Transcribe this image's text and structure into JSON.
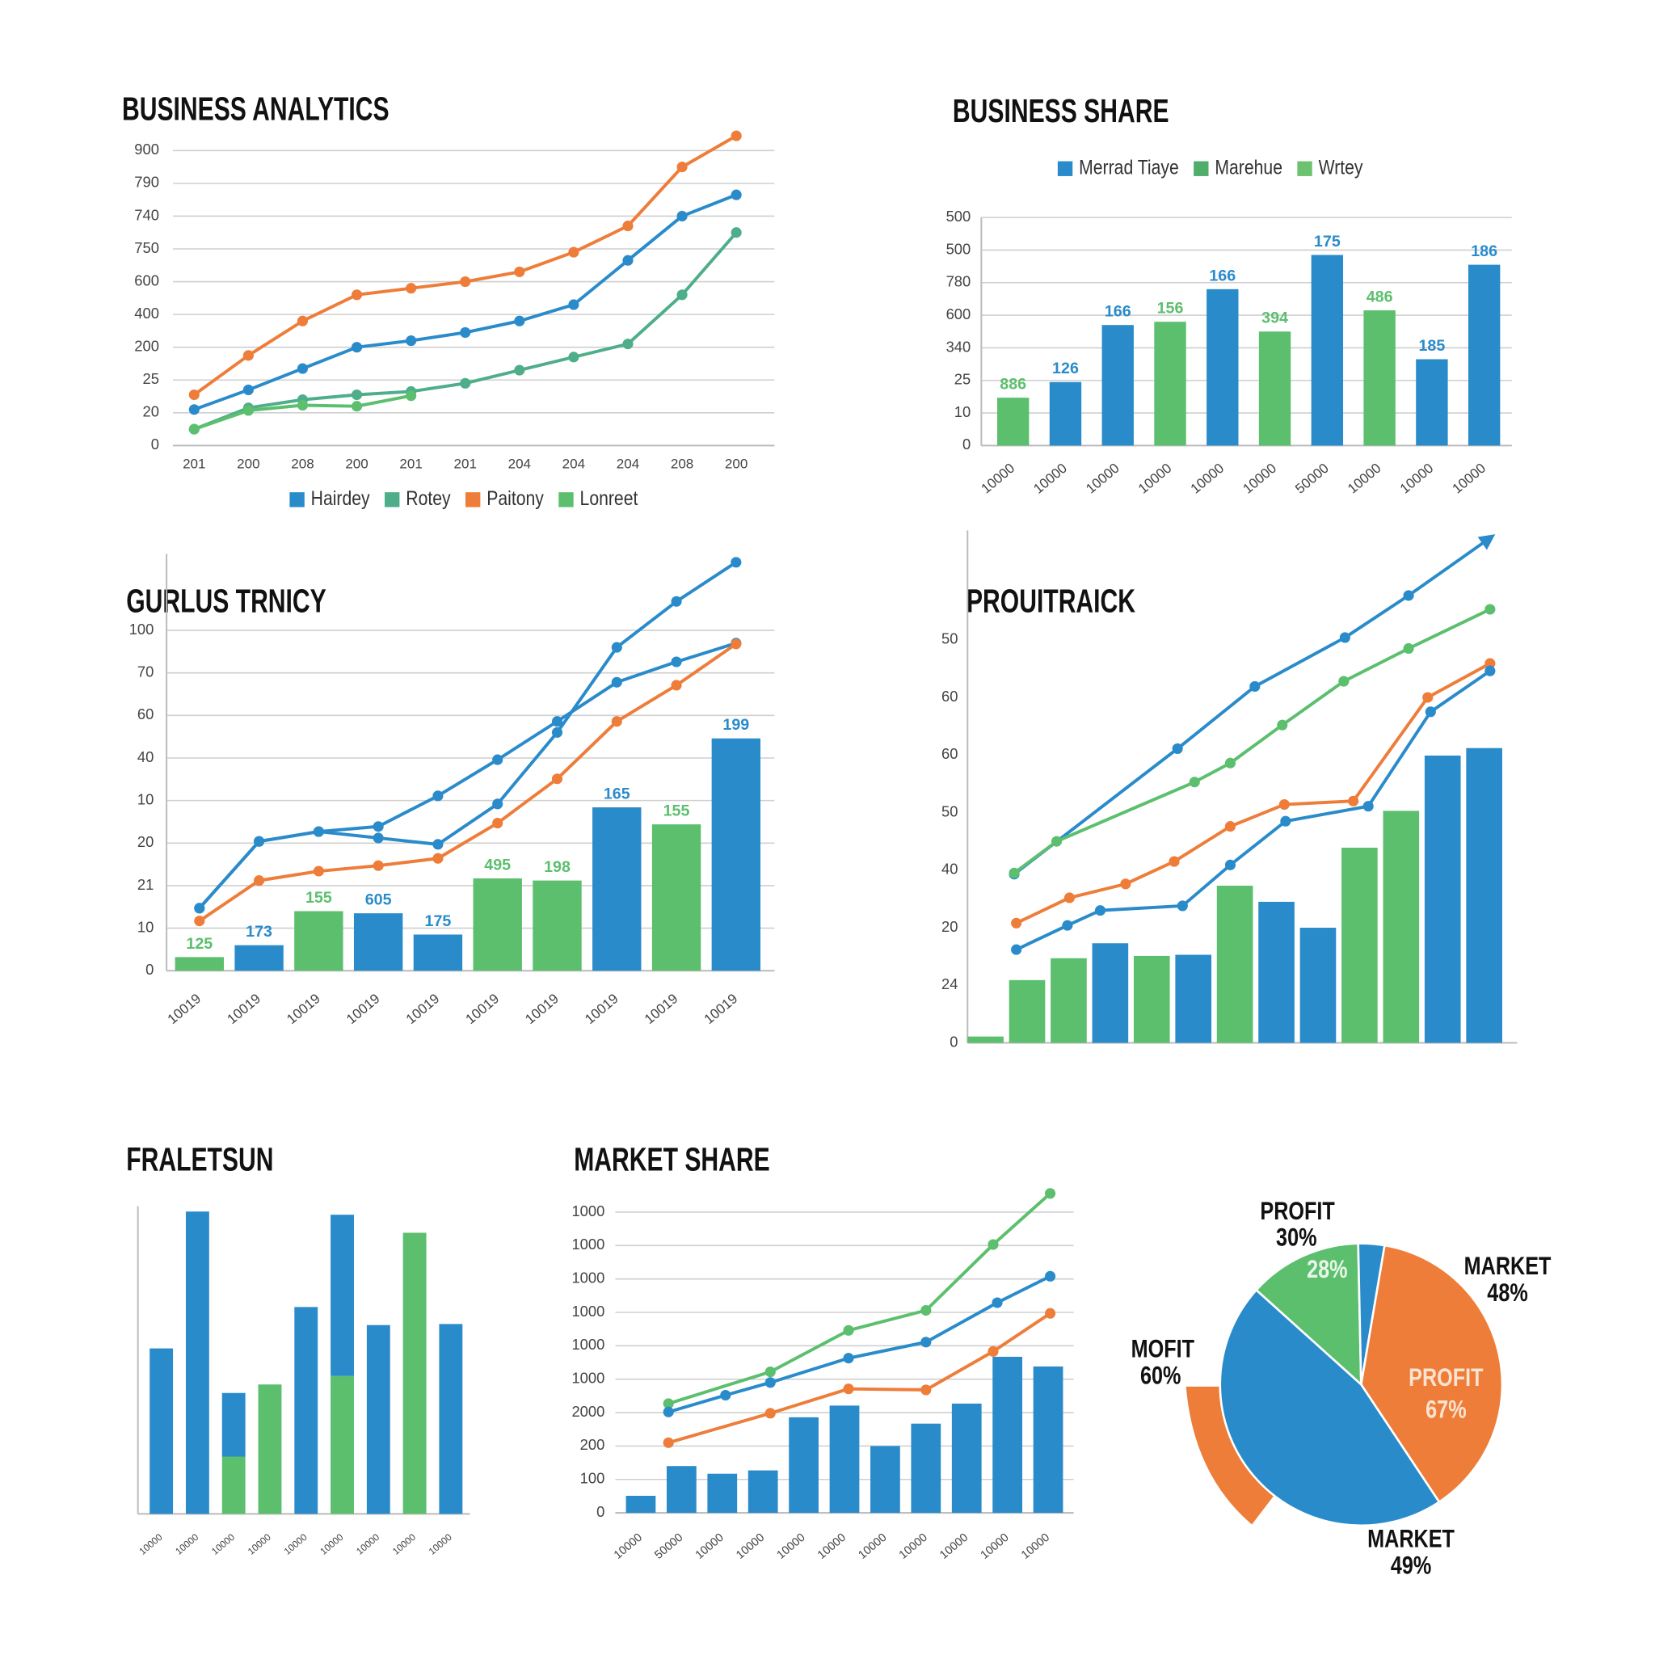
{
  "chart_data": [
    {
      "type": "line",
      "title": "BUSINESS ANALYTICS",
      "categories": [
        "201",
        "200",
        "208",
        "200",
        "201",
        "201",
        "204",
        "204",
        "204",
        "208",
        "200"
      ],
      "ylim": [
        0,
        9.7
      ],
      "yticks": [
        0,
        {
          "value": 1,
          "label": "20"
        },
        {
          "value": 2,
          "label": "25"
        },
        {
          "value": 3,
          "label": "200"
        },
        {
          "value": 4,
          "label": "400"
        },
        {
          "value": 5,
          "label": "600"
        },
        {
          "value": 6,
          "label": "750"
        },
        {
          "value": 7,
          "label": "740"
        },
        {
          "value": 8,
          "label": "790"
        },
        {
          "value": 9,
          "label": "900"
        }
      ],
      "grid": true,
      "legend": "bottom",
      "series": [
        {
          "name": "Hairdey",
          "color": "#2a8bcb",
          "values": [
            1.1,
            1.7,
            2.35,
            3.0,
            3.2,
            3.45,
            3.8,
            4.3,
            5.65,
            7.0,
            7.65
          ]
        },
        {
          "name": "Rotey",
          "color": "#4fae8a",
          "values": [
            0.5,
            1.15,
            1.4,
            1.55,
            1.65,
            1.9,
            2.3,
            2.7,
            3.1,
            4.6,
            6.5
          ]
        },
        {
          "name": "Paitony",
          "color": "#ee7d3a",
          "values": [
            1.55,
            2.75,
            3.8,
            4.6,
            4.8,
            5.0,
            5.3,
            5.9,
            6.7,
            8.5,
            9.45
          ]
        },
        {
          "name": "Lonreet",
          "color": "#5cbf6e",
          "values": [
            0.5,
            1.07,
            1.23,
            1.2,
            1.52,
            null,
            null,
            null,
            null,
            null,
            null
          ]
        }
      ]
    },
    {
      "type": "bar",
      "title": "BUSINESS SHARE",
      "categories": [
        "10000",
        "10000",
        "10000",
        "10000",
        "10000",
        "10000",
        "50000",
        "10000",
        "10000",
        "10000"
      ],
      "values": [
        1.47,
        1.95,
        3.7,
        3.8,
        4.8,
        3.5,
        5.85,
        4.15,
        2.65,
        5.55
      ],
      "colors": [
        "#5cbf6e",
        "#2a8bcb",
        "#2a8bcb",
        "#5cbf6e",
        "#2a8bcb",
        "#5cbf6e",
        "#2a8bcb",
        "#5cbf6e",
        "#2a8bcb",
        "#2a8bcb"
      ],
      "bar_labels": [
        "886",
        "126",
        "166",
        "156",
        "166",
        "394",
        "175",
        "486",
        "185",
        "186"
      ],
      "ylim": [
        0,
        7
      ],
      "yticks": [
        0,
        {
          "value": 1,
          "label": "10"
        },
        {
          "value": 2,
          "label": "25"
        },
        {
          "value": 3,
          "label": "340"
        },
        {
          "value": 4,
          "label": "600"
        },
        {
          "value": 5,
          "label": "780"
        },
        {
          "value": 6,
          "label": "500"
        },
        {
          "value": 7,
          "label": "500"
        }
      ],
      "grid": true,
      "legend": "top",
      "legend_items": [
        {
          "name": "Merrad Tiaye",
          "color": "#2a8bcb"
        },
        {
          "name": "Marehue",
          "color": "#4fae6a"
        },
        {
          "name": "Wrtey",
          "color": "#6cc26f"
        }
      ]
    },
    {
      "type": "combo",
      "title": "GURLUS TRNICY",
      "categories": [
        "10019",
        "10019",
        "10019",
        "10019",
        "10019",
        "10019",
        "10019",
        "10019",
        "10019",
        "10019"
      ],
      "values": [
        0.32,
        0.6,
        1.4,
        1.35,
        0.85,
        2.17,
        2.12,
        3.84,
        3.44,
        5.46
      ],
      "colors": [
        "#5cbf6e",
        "#2a8bcb",
        "#5cbf6e",
        "#2a8bcb",
        "#2a8bcb",
        "#5cbf6e",
        "#5cbf6e",
        "#2a8bcb",
        "#5cbf6e",
        "#2a8bcb"
      ],
      "bar_labels": [
        "125",
        "173",
        "155",
        "605",
        "175",
        "495",
        "198",
        "165",
        "155",
        "199"
      ],
      "ylim": [
        0,
        9.8
      ],
      "yticks": [
        0,
        {
          "value": 1,
          "label": "10"
        },
        {
          "value": 2,
          "label": "21"
        },
        {
          "value": 3,
          "label": "20"
        },
        {
          "value": 4,
          "label": "10"
        },
        {
          "value": 5,
          "label": "40"
        },
        {
          "value": 6,
          "label": "60"
        },
        {
          "value": 7,
          "label": "70"
        },
        {
          "value": 8,
          "label": "100"
        }
      ],
      "grid": true,
      "series": [
        {
          "color": "#2a8bcb",
          "values": [
            1.47,
            3.04,
            3.27,
            3.39,
            4.11,
            4.96,
            5.86,
            6.78,
            7.26,
            7.7
          ]
        },
        {
          "color": "#2a8bcb",
          "values": [
            1.47,
            3.04,
            3.27,
            3.12,
            2.97,
            3.92,
            5.6,
            7.6,
            8.68,
            9.6
          ]
        },
        {
          "color": "#ee7d3a",
          "values": [
            1.17,
            2.12,
            2.34,
            2.47,
            2.64,
            3.47,
            4.51,
            5.86,
            6.71,
            7.68
          ]
        }
      ]
    },
    {
      "type": "combo",
      "title": "PROUITRAICK",
      "values": [
        0.11,
        1.09,
        1.47,
        1.73,
        1.51,
        1.53,
        2.73,
        2.45,
        2.0,
        3.39,
        4.03,
        4.99,
        5.12
      ],
      "colors": [
        "#5cbf6e",
        "#5cbf6e",
        "#5cbf6e",
        "#2a8bcb",
        "#5cbf6e",
        "#2a8bcb",
        "#5cbf6e",
        "#2a8bcb",
        "#2a8bcb",
        "#5cbf6e",
        "#5cbf6e",
        "#2a8bcb",
        "#2a8bcb"
      ],
      "xlim": [
        -0.5,
        12.5
      ],
      "ylim": [
        0,
        8.9
      ],
      "yticks": [
        0,
        {
          "value": 1,
          "label": "24"
        },
        {
          "value": 2,
          "label": "20"
        },
        {
          "value": 3,
          "label": "40"
        },
        {
          "value": 4,
          "label": "50"
        },
        {
          "value": 5,
          "label": "60"
        },
        {
          "value": 6,
          "label": "60"
        },
        {
          "value": 7,
          "label": "50"
        }
      ],
      "grid": false,
      "series": [
        {
          "color": "#2a8bcb",
          "arrow": true,
          "x": [
            0.69,
            4.62,
            6.48,
            8.65,
            10.18,
            12.14
          ],
          "values": [
            2.93,
            5.11,
            6.19,
            7.04,
            7.77,
            8.77
          ]
        },
        {
          "color": "#5cbf6e",
          "x": [
            0.69,
            1.71,
            5.03,
            5.89,
            7.14,
            8.62,
            10.18,
            12.14
          ],
          "values": [
            2.95,
            3.5,
            4.53,
            4.86,
            5.52,
            6.28,
            6.85,
            7.53
          ]
        },
        {
          "color": "#ee7d3a",
          "x": [
            0.74,
            2.02,
            3.37,
            4.54,
            5.89,
            7.19,
            8.85,
            10.64,
            12.14
          ],
          "values": [
            2.08,
            2.52,
            2.76,
            3.15,
            3.76,
            4.14,
            4.2,
            6.0,
            6.59
          ]
        },
        {
          "color": "#2a8bcb",
          "x": [
            0.74,
            1.97,
            2.76,
            4.74,
            5.89,
            7.22,
            9.21,
            10.71,
            12.14
          ],
          "values": [
            1.62,
            2.04,
            2.3,
            2.38,
            3.09,
            3.85,
            4.11,
            5.75,
            6.46
          ]
        }
      ]
    },
    {
      "type": "bar",
      "title": "FRALETSUN",
      "stacked": true,
      "categories": [
        "10000",
        "10000",
        "10000",
        "10000",
        "10000",
        "10000",
        "10000",
        "10000",
        "10000"
      ],
      "ylim": [
        0,
        290
      ],
      "series": [
        {
          "color": "#5cbf6e",
          "values": [
            0,
            0,
            54,
            122,
            0,
            130,
            0,
            265,
            0
          ]
        },
        {
          "color": "#2a8bcb",
          "values": [
            156,
            285,
            60,
            0,
            195,
            152,
            178,
            0,
            179
          ]
        }
      ]
    },
    {
      "type": "combo",
      "title": "MARKET SHARE",
      "categories": [
        "10000",
        "50000",
        "10000",
        "10000",
        "10000",
        "10000",
        "10000",
        "10000",
        "10000",
        "10000",
        "10000"
      ],
      "values": [
        0.51,
        1.4,
        1.17,
        1.27,
        2.86,
        3.21,
        2.0,
        2.67,
        3.27,
        4.67,
        4.38
      ],
      "color": "#2a8bcb",
      "xlim": [
        -0.5,
        10.5
      ],
      "ylim": [
        0,
        9.7
      ],
      "yticks": [
        0,
        {
          "value": 1,
          "label": "100"
        },
        {
          "value": 2,
          "label": "200"
        },
        {
          "value": 3,
          "label": "2000"
        },
        {
          "value": 4,
          "label": "1000"
        },
        {
          "value": 5,
          "label": "1000"
        },
        {
          "value": 6,
          "label": "1000"
        },
        {
          "value": 7,
          "label": "1000"
        },
        {
          "value": 8,
          "label": "1000"
        },
        {
          "value": 9,
          "label": "1000"
        }
      ],
      "grid": true,
      "series": [
        {
          "color": "#5cbf6e",
          "x": [
            0.68,
            3.18,
            5.1,
            7.0,
            8.65,
            10.05
          ],
          "values": [
            3.27,
            4.22,
            5.46,
            6.06,
            8.03,
            9.56
          ]
        },
        {
          "color": "#2a8bcb",
          "x": [
            0.68,
            2.08,
            3.18,
            5.1,
            7.0,
            8.75,
            10.05
          ],
          "values": [
            3.02,
            3.52,
            3.9,
            4.63,
            5.11,
            6.29,
            7.08
          ]
        },
        {
          "color": "#ee7d3a",
          "x": [
            0.68,
            3.18,
            5.1,
            7.0,
            8.65,
            10.05
          ],
          "values": [
            2.1,
            2.98,
            3.71,
            3.68,
            4.83,
            5.97
          ]
        }
      ]
    },
    {
      "type": "pie",
      "values": [
        13,
        3,
        38,
        46
      ],
      "colors": [
        "#5cbf6e",
        "#2a8bcb",
        "#ee7d3a",
        "#2a8bcb"
      ],
      "annotations": [
        "PROFIT",
        "30%",
        "MARKET",
        "48%",
        "MOFIT",
        "60%",
        "PROFIT",
        "67%",
        "28%",
        "MARKET",
        "49%"
      ]
    }
  ]
}
